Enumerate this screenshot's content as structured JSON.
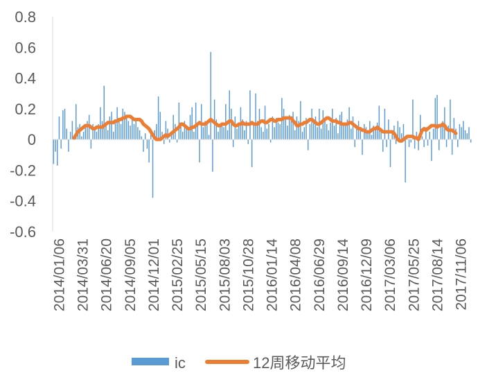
{
  "chart_data": {
    "type": "bar",
    "title": "",
    "xlabel": "",
    "ylabel": "",
    "ylim": [
      -0.6,
      0.8
    ],
    "yticks": [
      "0.8",
      "0.6",
      "0.4",
      "0.2",
      "0",
      "-0.2",
      "-0.4",
      "-0.6"
    ],
    "ytick_values": [
      0.8,
      0.6,
      0.4,
      0.2,
      0,
      -0.2,
      -0.4,
      -0.6
    ],
    "x_tick_labels": [
      "2014/01/06",
      "2014/03/31",
      "2014/06/20",
      "2014/09/05",
      "2014/12/01",
      "2015/02/25",
      "2015/05/15",
      "2015/08/03",
      "2015/10/28",
      "2016/01/14",
      "2016/04/08",
      "2016/06/29",
      "2016/09/14",
      "2016/12/09",
      "2017/03/06",
      "2017/05/25",
      "2017/08/14",
      "2017/11/06"
    ],
    "grid": false,
    "legend_position": "bottom",
    "series": [
      {
        "name": "ic",
        "type": "bar",
        "color": "#5B9BD5",
        "values": [
          -0.16,
          -0.08,
          -0.17,
          0.15,
          -0.06,
          0.19,
          0.2,
          0.07,
          -0.08,
          0.05,
          0.12,
          0.03,
          0.23,
          0.08,
          0.1,
          0.02,
          0.05,
          0.09,
          0.12,
          0.16,
          -0.06,
          0.1,
          0.08,
          0.05,
          0.1,
          0.21,
          0.12,
          0.35,
          0.1,
          0.06,
          0.15,
          0.18,
          0.05,
          0.11,
          0.21,
          0.12,
          0.1,
          0.2,
          0.18,
          0.14,
          0.12,
          0.09,
          0.15,
          0.1,
          0.13,
          0.08,
          0.06,
          0.02,
          -0.08,
          0.04,
          -0.06,
          -0.15,
          0.03,
          -0.38,
          0.06,
          0.1,
          0.28,
          0.18,
          0.05,
          -0.03,
          0.12,
          0.07,
          -0.02,
          0.05,
          0.16,
          0.1,
          -0.02,
          0.24,
          0.09,
          0.05,
          0.12,
          0.08,
          0.06,
          0.16,
          0.21,
          0.05,
          0.24,
          0.1,
          -0.15,
          0.23,
          0.08,
          0.12,
          0.11,
          0.03,
          0.57,
          -0.21,
          0.26,
          0.13,
          0.05,
          0.09,
          0.11,
          0.08,
          0.23,
          0.06,
          0.32,
          0.2,
          -0.05,
          0.15,
          0.07,
          0.11,
          0.21,
          0.13,
          0.06,
          0.12,
          -0.03,
          0.32,
          -0.18,
          0.1,
          0.3,
          0.12,
          0.2,
          0.08,
          0.05,
          0.22,
          0.07,
          0.1,
          -0.02,
          0.15,
          0.08,
          0.14,
          0.11,
          0.1,
          0.27,
          0.2,
          0.14,
          0.09,
          0.16,
          0.12,
          0.18,
          0.06,
          0.15,
          0.12,
          0.25,
          0.05,
          0.08,
          0.14,
          -0.07,
          0.1,
          0.2,
          0.12,
          0.15,
          0.08,
          0.2,
          0.07,
          0.19,
          0.12,
          0.1,
          0.06,
          0.11,
          0.2,
          0.09,
          0.14,
          0.04,
          0.16,
          0.18,
          0.09,
          0.11,
          0.13,
          0.21,
          0.07,
          0.15,
          -0.05,
          0.09,
          0.12,
          0.06,
          -0.1,
          0.1,
          0.08,
          0.05,
          0.12,
          0.03,
          0.09,
          0.06,
          0.11,
          0.22,
          0.06,
          -0.08,
          0.2,
          -0.05,
          0.13,
          -0.18,
          0.05,
          0.09,
          -0.03,
          0.12,
          0.08,
          0.04,
          0.1,
          -0.28,
          0.02,
          -0.05,
          -0.02,
          0.26,
          -0.06,
          0.05,
          -0.07,
          0.16,
          0.02,
          -0.05,
          0.08,
          -0.04,
          0.05,
          -0.14,
          0.07,
          0.27,
          0.29,
          -0.07,
          0.08,
          0.12,
          0.21,
          -0.05,
          0.09,
          0.26,
          -0.1,
          0.14,
          0.07,
          -0.05,
          0.1,
          0.08,
          0.12,
          0.06,
          0.04,
          0.08,
          -0.02
        ]
      },
      {
        "name": "12周移动平均",
        "type": "line",
        "color": "#ED7D31",
        "start_index": 11,
        "values": [
          0.01,
          0.03,
          0.05,
          0.06,
          0.07,
          0.08,
          0.09,
          0.09,
          0.09,
          0.08,
          0.07,
          0.07,
          0.08,
          0.08,
          0.08,
          0.08,
          0.09,
          0.1,
          0.11,
          0.11,
          0.11,
          0.11,
          0.12,
          0.12,
          0.13,
          0.13,
          0.14,
          0.14,
          0.15,
          0.15,
          0.15,
          0.14,
          0.13,
          0.13,
          0.13,
          0.13,
          0.12,
          0.1,
          0.09,
          0.08,
          0.07,
          0.05,
          0.03,
          0.01,
          0.0,
          0.0,
          0.0,
          0.01,
          0.02,
          0.03,
          0.02,
          0.03,
          0.04,
          0.05,
          0.06,
          0.07,
          0.08,
          0.1,
          0.1,
          0.09,
          0.08,
          0.07,
          0.07,
          0.08,
          0.08,
          0.09,
          0.1,
          0.11,
          0.1,
          0.1,
          0.1,
          0.11,
          0.12,
          0.13,
          0.12,
          0.11,
          0.1,
          0.09,
          0.09,
          0.1,
          0.1,
          0.1,
          0.11,
          0.12,
          0.12,
          0.1,
          0.09,
          0.09,
          0.1,
          0.1,
          0.11,
          0.1,
          0.1,
          0.1,
          0.1,
          0.11,
          0.1,
          0.1,
          0.1,
          0.11,
          0.12,
          0.12,
          0.11,
          0.11,
          0.12,
          0.13,
          0.13,
          0.12,
          0.12,
          0.13,
          0.13,
          0.13,
          0.14,
          0.14,
          0.14,
          0.14,
          0.14,
          0.12,
          0.11,
          0.09,
          0.09,
          0.1,
          0.1,
          0.11,
          0.11,
          0.12,
          0.13,
          0.13,
          0.12,
          0.11,
          0.1,
          0.1,
          0.11,
          0.12,
          0.13,
          0.14,
          0.14,
          0.13,
          0.12,
          0.12,
          0.12,
          0.11,
          0.11,
          0.1,
          0.1,
          0.1,
          0.1,
          0.11,
          0.11,
          0.1,
          0.09,
          0.08,
          0.07,
          0.07,
          0.06,
          0.06,
          0.05,
          0.05,
          0.05,
          0.06,
          0.07,
          0.07,
          0.08,
          0.07,
          0.06,
          0.05,
          0.05,
          0.05,
          0.05,
          0.05,
          0.05,
          0.04,
          0.02,
          0.0,
          -0.01,
          -0.01,
          0.0,
          0.01,
          0.02,
          0.02,
          0.02,
          0.02,
          0.01,
          0.01,
          0.0,
          0.03,
          0.06,
          0.07,
          0.06,
          0.07,
          0.08,
          0.09,
          0.09,
          0.09,
          0.08,
          0.09,
          0.09,
          0.1,
          0.09,
          0.07,
          0.06,
          0.06,
          0.06,
          0.05,
          0.04
        ]
      }
    ]
  }
}
